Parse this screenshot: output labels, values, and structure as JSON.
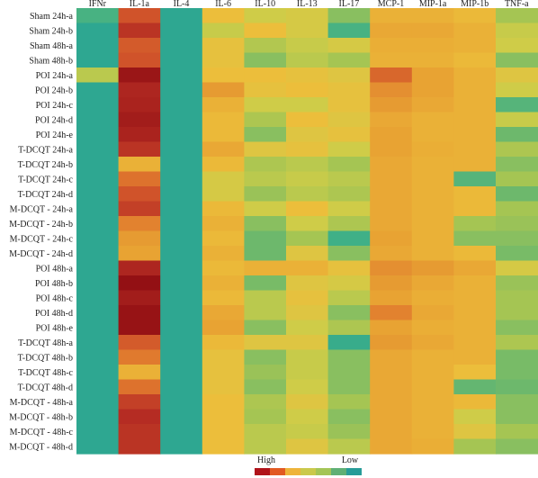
{
  "chart_data": {
    "type": "heatmap",
    "columns": [
      "IFNr",
      "IL-1a",
      "IL-4",
      "IL-6",
      "IL-10",
      "IL-13",
      "IL-17",
      "MCP-1",
      "MIP-1a",
      "MIP-1b",
      "TNF-a"
    ],
    "rows": [
      "Sham 24h-a",
      "Sham 24h-b",
      "Sham 48h-a",
      "Sham 48h-b",
      "POI 24h-a",
      "POI 24h-b",
      "POI 24h-c",
      "POI 24h-d",
      "POI 24h-e",
      "T-DCQT 24h-a",
      "T-DCQT 24h-b",
      "T-DCQT 24h-c",
      "T-DCQT 24h-d",
      "M-DCQT - 24h-a",
      "M-DCQT - 24h-b",
      "M-DCQT - 24h-c",
      "M-DCQT - 24h-d",
      "POI 48h-a",
      "POI 48h-b",
      "POI 48h-c",
      "POI 48h-d",
      "POI 48h-e",
      "T-DCQT 48h-a",
      "T-DCQT 48h-b",
      "T-DCQT 48h-c",
      "T-DCQT 48h-d",
      "M-DCQT - 48h-a",
      "M-DCQT - 48h-b",
      "M-DCQT - 48h-c",
      "M-DCQT - 48h-d"
    ],
    "scale": "0 = Low, 1 = High",
    "values": [
      [
        0.12,
        0.8,
        0.05,
        0.5,
        0.4,
        0.42,
        0.25,
        0.55,
        0.55,
        0.52,
        0.3
      ],
      [
        0.05,
        0.88,
        0.05,
        0.38,
        0.5,
        0.42,
        0.12,
        0.58,
        0.58,
        0.55,
        0.38
      ],
      [
        0.05,
        0.78,
        0.05,
        0.48,
        0.33,
        0.38,
        0.42,
        0.56,
        0.56,
        0.55,
        0.4
      ],
      [
        0.05,
        0.8,
        0.05,
        0.48,
        0.25,
        0.35,
        0.3,
        0.55,
        0.55,
        0.52,
        0.25
      ],
      [
        0.35,
        0.97,
        0.05,
        0.5,
        0.5,
        0.48,
        0.45,
        0.75,
        0.6,
        0.55,
        0.45
      ],
      [
        0.05,
        0.92,
        0.05,
        0.62,
        0.48,
        0.5,
        0.48,
        0.65,
        0.6,
        0.55,
        0.4
      ],
      [
        0.05,
        0.93,
        0.05,
        0.55,
        0.4,
        0.4,
        0.48,
        0.62,
        0.58,
        0.55,
        0.15
      ],
      [
        0.05,
        0.95,
        0.05,
        0.52,
        0.32,
        0.5,
        0.45,
        0.58,
        0.55,
        0.55,
        0.38
      ],
      [
        0.05,
        0.93,
        0.05,
        0.52,
        0.25,
        0.45,
        0.48,
        0.6,
        0.55,
        0.55,
        0.2
      ],
      [
        0.05,
        0.88,
        0.05,
        0.58,
        0.45,
        0.48,
        0.4,
        0.6,
        0.56,
        0.55,
        0.32
      ],
      [
        0.05,
        0.55,
        0.05,
        0.52,
        0.32,
        0.35,
        0.3,
        0.58,
        0.55,
        0.55,
        0.25
      ],
      [
        0.05,
        0.72,
        0.05,
        0.42,
        0.35,
        0.38,
        0.35,
        0.58,
        0.55,
        0.15,
        0.3
      ],
      [
        0.05,
        0.8,
        0.05,
        0.42,
        0.28,
        0.35,
        0.32,
        0.58,
        0.55,
        0.52,
        0.2
      ],
      [
        0.05,
        0.85,
        0.05,
        0.52,
        0.4,
        0.5,
        0.4,
        0.58,
        0.55,
        0.52,
        0.3
      ],
      [
        0.05,
        0.68,
        0.05,
        0.55,
        0.25,
        0.4,
        0.32,
        0.58,
        0.55,
        0.3,
        0.28
      ],
      [
        0.05,
        0.62,
        0.05,
        0.52,
        0.2,
        0.3,
        0.1,
        0.6,
        0.55,
        0.25,
        0.25
      ],
      [
        0.05,
        0.6,
        0.05,
        0.55,
        0.2,
        0.45,
        0.25,
        0.58,
        0.55,
        0.52,
        0.22
      ],
      [
        0.05,
        0.92,
        0.05,
        0.52,
        0.55,
        0.55,
        0.48,
        0.65,
        0.62,
        0.58,
        0.42
      ],
      [
        0.05,
        0.99,
        0.05,
        0.55,
        0.22,
        0.45,
        0.42,
        0.62,
        0.58,
        0.55,
        0.28
      ],
      [
        0.05,
        0.95,
        0.05,
        0.52,
        0.35,
        0.48,
        0.35,
        0.6,
        0.56,
        0.55,
        0.3
      ],
      [
        0.05,
        0.98,
        0.05,
        0.58,
        0.35,
        0.45,
        0.25,
        0.68,
        0.58,
        0.55,
        0.3
      ],
      [
        0.05,
        0.98,
        0.05,
        0.6,
        0.25,
        0.4,
        0.32,
        0.6,
        0.56,
        0.55,
        0.25
      ],
      [
        0.05,
        0.78,
        0.05,
        0.52,
        0.45,
        0.45,
        0.08,
        0.62,
        0.58,
        0.55,
        0.32
      ],
      [
        0.05,
        0.7,
        0.05,
        0.48,
        0.25,
        0.38,
        0.25,
        0.58,
        0.55,
        0.55,
        0.22
      ],
      [
        0.05,
        0.55,
        0.05,
        0.48,
        0.28,
        0.38,
        0.25,
        0.58,
        0.55,
        0.5,
        0.22
      ],
      [
        0.05,
        0.72,
        0.05,
        0.48,
        0.25,
        0.4,
        0.25,
        0.58,
        0.55,
        0.18,
        0.2
      ],
      [
        0.05,
        0.85,
        0.05,
        0.5,
        0.32,
        0.45,
        0.3,
        0.58,
        0.55,
        0.52,
        0.25
      ],
      [
        0.05,
        0.9,
        0.05,
        0.5,
        0.3,
        0.4,
        0.25,
        0.58,
        0.55,
        0.4,
        0.25
      ],
      [
        0.05,
        0.88,
        0.05,
        0.5,
        0.35,
        0.38,
        0.28,
        0.58,
        0.55,
        0.45,
        0.3
      ],
      [
        0.05,
        0.88,
        0.05,
        0.5,
        0.35,
        0.45,
        0.35,
        0.58,
        0.56,
        0.3,
        0.25
      ]
    ],
    "palette": [
      "#1d9e9b",
      "#3fb087",
      "#6db86c",
      "#a5c553",
      "#cfcc48",
      "#ecbe3b",
      "#e8a333",
      "#e07a2e",
      "#d0532a",
      "#b52c23",
      "#8f0d12"
    ],
    "legend": {
      "high_label": "High",
      "low_label": "Low",
      "colors": [
        "#b0131a",
        "#e25a22",
        "#eeb43a",
        "#cac94b",
        "#a4c556",
        "#5fb075",
        "#279c98"
      ]
    }
  }
}
